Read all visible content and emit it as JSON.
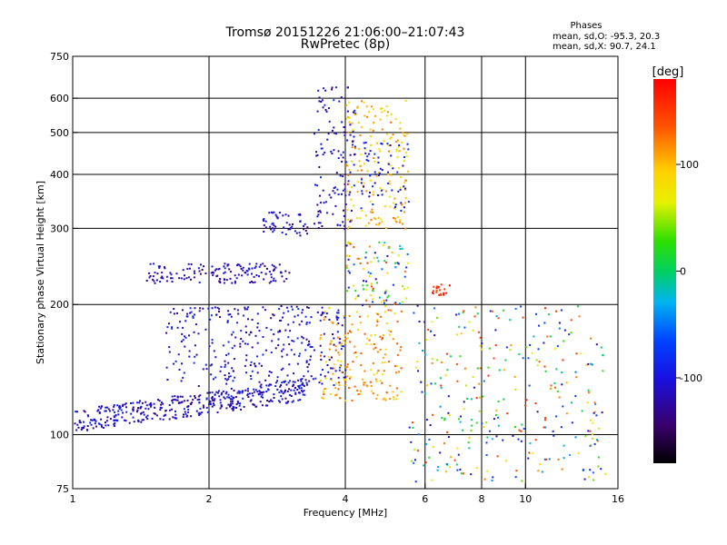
{
  "chart_data": {
    "type": "scatter",
    "title": "Tromsø 20151226 21:06:00–21:07:43",
    "subtitle": "RwPretec (8p)",
    "xlabel": "Frequency [MHz]",
    "ylabel": "Stationary phase Virtual Height [km]",
    "xscale": "log",
    "yscale": "log",
    "xlim": [
      1,
      16
    ],
    "ylim": [
      75,
      750
    ],
    "xticks": [
      1,
      2,
      4,
      6,
      8,
      10,
      16
    ],
    "xtick_labels": [
      "1",
      "2",
      "4",
      "6",
      "8",
      "10",
      "16"
    ],
    "yticks": [
      75,
      100,
      200,
      300,
      400,
      500,
      600,
      750
    ],
    "ytick_labels": [
      "75",
      "100",
      "200",
      "300",
      "400",
      "500",
      "600",
      "750"
    ],
    "grid": true,
    "phases": {
      "title": "Phases",
      "line_o": "mean, sd,O: -95.3, 20.3",
      "line_x": "mean, sd,X:  90.7, 24.1"
    },
    "colorbar": {
      "label": "[deg]",
      "range": [
        -180,
        180
      ],
      "tick_values": [
        100,
        0,
        -100
      ],
      "tick_labels": [
        "100",
        "0",
        "-100"
      ]
    },
    "point_groups": [
      {
        "name": "low_band_blue",
        "freq_range": [
          1.0,
          3.3
        ],
        "height_range": [
          105,
          140
        ],
        "phase": -110,
        "count": 420
      },
      {
        "name": "sporadic_e_layer",
        "freq_range": [
          1.45,
          3.0
        ],
        "height_range": [
          225,
          250
        ],
        "phase": -115,
        "count": 150
      },
      {
        "name": "mid_band_blue",
        "freq_range": [
          1.6,
          4.0
        ],
        "height_range": [
          130,
          200
        ],
        "phase": -105,
        "count": 330
      },
      {
        "name": "upper_trace_blue",
        "freq_range": [
          2.6,
          3.6
        ],
        "height_range": [
          290,
          330
        ],
        "phase": -115,
        "count": 60
      },
      {
        "name": "rising_cusp_blue",
        "freq_range": [
          3.4,
          4.2
        ],
        "height_range": [
          300,
          640
        ],
        "phase": -110,
        "count": 120
      },
      {
        "name": "x_mode_yellow",
        "freq_range": [
          3.5,
          5.3
        ],
        "height_range": [
          120,
          200
        ],
        "phase": 110,
        "count": 180
      },
      {
        "name": "x_mode_upper",
        "freq_range": [
          4.0,
          5.5
        ],
        "height_range": [
          300,
          600
        ],
        "phase": 100,
        "count": 170
      },
      {
        "name": "o_mode_upper_blue",
        "freq_range": [
          4.3,
          5.5
        ],
        "height_range": [
          330,
          480
        ],
        "phase": -100,
        "count": 60
      },
      {
        "name": "mixed_mid",
        "freq_range": [
          4.0,
          5.5
        ],
        "height_range": [
          200,
          280
        ],
        "phase": 30,
        "count": 100
      },
      {
        "name": "scattered_high_freq",
        "freq_range": [
          5.5,
          15
        ],
        "height_range": [
          78,
          200
        ],
        "phase": 0,
        "count": 320
      },
      {
        "name": "orange_cluster",
        "freq_range": [
          6.2,
          6.8
        ],
        "height_range": [
          210,
          225
        ],
        "phase": 160,
        "count": 20
      }
    ]
  }
}
